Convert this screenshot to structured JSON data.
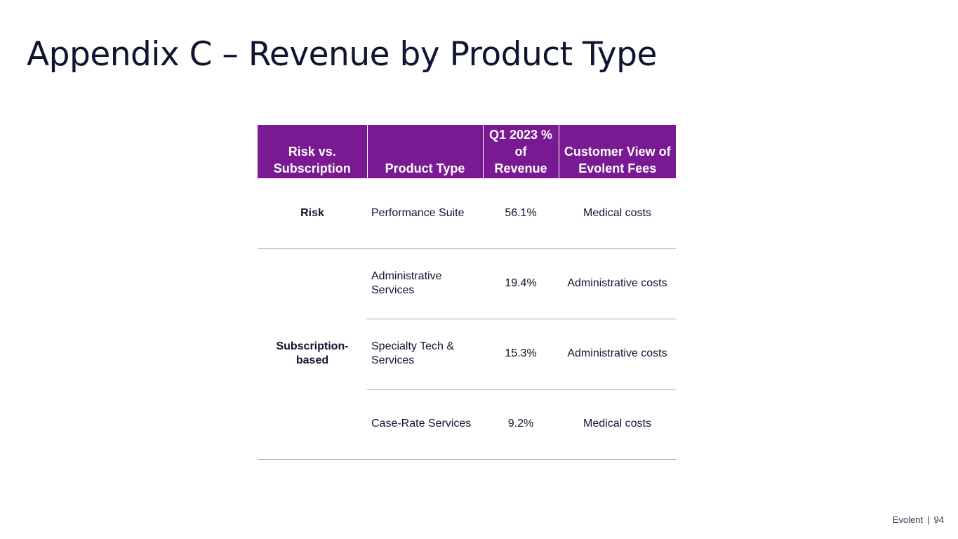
{
  "slide": {
    "title": "Appendix C – Revenue by Product Type"
  },
  "table": {
    "headers": {
      "risk": "Risk vs. Subscription",
      "product": "Product Type",
      "pct": "Q1 2023 % of Revenue",
      "view": "Customer View of Evolent Fees"
    },
    "groups": {
      "risk": "Risk",
      "subscription": "Subscription-based"
    },
    "rows": [
      {
        "product": "Performance Suite",
        "pct": "56.1%",
        "view": "Medical costs"
      },
      {
        "product": "Administrative Services",
        "pct": "19.4%",
        "view": "Administrative costs"
      },
      {
        "product": "Specialty Tech & Services",
        "pct": "15.3%",
        "view": "Administrative costs"
      },
      {
        "product": "Case-Rate Services",
        "pct": "9.2%",
        "view": "Medical costs"
      }
    ]
  },
  "footer": {
    "brand": "Evolent",
    "separator": "|",
    "page": "94"
  }
}
